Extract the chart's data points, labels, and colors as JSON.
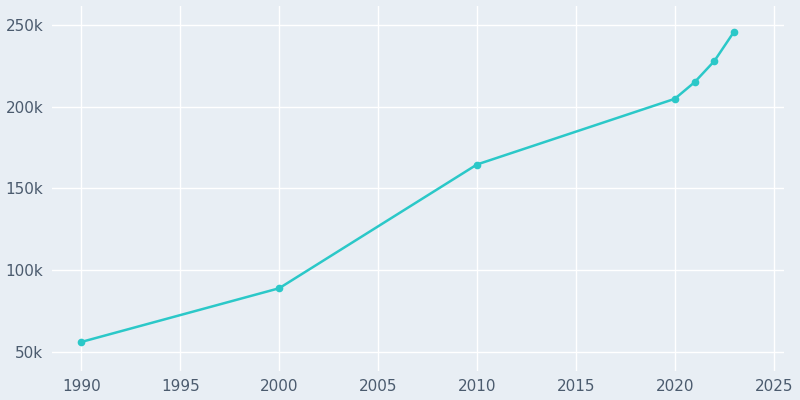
{
  "years": [
    1990,
    2000,
    2010,
    2020,
    2021,
    2022,
    2023
  ],
  "population": [
    55866,
    88769,
    164603,
    204851,
    215000,
    228000,
    246045
  ],
  "line_color": "#2BC8C8",
  "bg_color": "#E8EEF4",
  "grid_color": "#ffffff",
  "tick_color": "#4B5B6E",
  "xlim": [
    1988.5,
    2025.5
  ],
  "ylim": [
    38000,
    262000
  ],
  "xticks": [
    1990,
    1995,
    2000,
    2005,
    2010,
    2015,
    2020,
    2025
  ],
  "yticks": [
    50000,
    100000,
    150000,
    200000,
    250000
  ],
  "ytick_labels": [
    "50k",
    "100k",
    "150k",
    "200k",
    "250k"
  ],
  "linewidth": 1.8,
  "marker_size": 4.5,
  "tick_fontsize": 11
}
